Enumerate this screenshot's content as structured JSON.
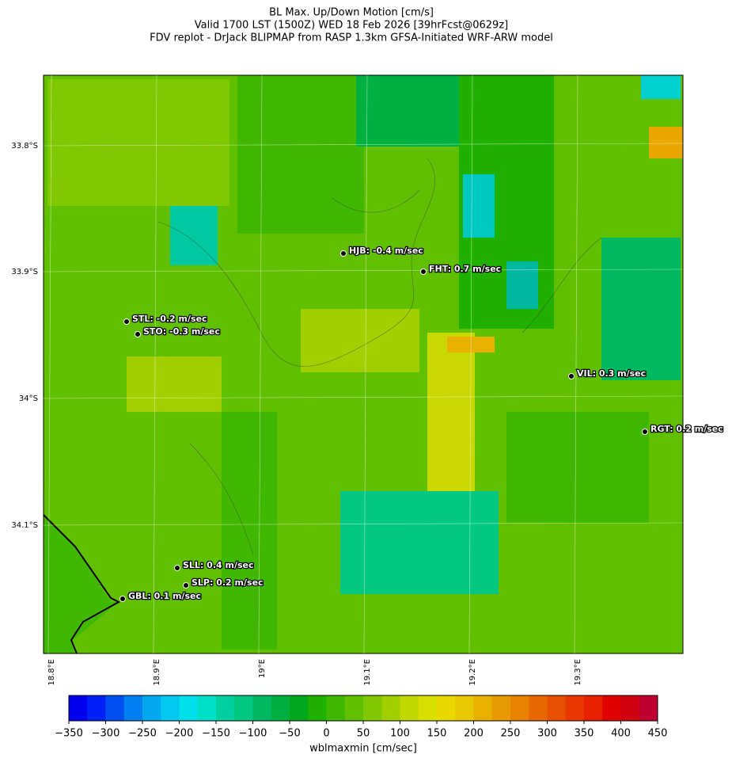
{
  "header": {
    "title_lines": [
      "BL Max. Up/Down Motion [cm/s]",
      "Valid 1700 LST (1500Z) WED 18 Feb 2026 [39hrFcst@0629z]",
      "FDV replot - DrJack BLIPMAP from RASP 1.3km GFSA-Initiated WRF-ARW model"
    ]
  },
  "map": {
    "lat_ticks": [
      "33.8°S",
      "33.9°S",
      "34°S",
      "34.1°S"
    ],
    "lon_ticks": [
      "18.8°E",
      "18.9°E",
      "19°E",
      "19.1°E",
      "19.2°E",
      "19.3°E"
    ],
    "stations": [
      "HJB: -0.4 m/sec",
      "FHT: 0.7 m/sec",
      "STL: -0.2 m/sec",
      "STO: -0.3 m/sec",
      "VIL: 0.3 m/sec",
      "RGT: 0.2 m/sec",
      "SLL: 0.4 m/sec",
      "SLP: 0.2 m/sec",
      "GBL: 0.1 m/sec"
    ]
  },
  "colorbar": {
    "lim": [
      -350,
      450
    ],
    "ticks": [
      {
        "value": -350,
        "label": "−350"
      },
      {
        "value": -300,
        "label": "−300"
      },
      {
        "value": -250,
        "label": "−250"
      },
      {
        "value": -200,
        "label": "−200"
      },
      {
        "value": -150,
        "label": "−150"
      },
      {
        "value": -100,
        "label": "−100"
      },
      {
        "value": -50,
        "label": "−50"
      },
      0,
      50,
      100,
      150,
      200,
      250,
      300,
      350,
      400,
      450
    ],
    "colors": [
      "#0000f0",
      "#0020f5",
      "#0050f0",
      "#0080f0",
      "#00a8f0",
      "#00c8f0",
      "#00e0e8",
      "#00e0c8",
      "#00d0a0",
      "#00c880",
      "#00b860",
      "#00b040",
      "#00a820",
      "#20b000",
      "#40b800",
      "#60c000",
      "#80c800",
      "#a0d000",
      "#c0d800",
      "#d8e000",
      "#e8d800",
      "#e8c800",
      "#e8b000",
      "#e89800",
      "#e88000",
      "#e86800",
      "#e85000",
      "#e83800",
      "#e82000",
      "#e00000",
      "#d00010",
      "#c00030"
    ],
    "label": "wblmaxmin [cm/sec]"
  }
}
